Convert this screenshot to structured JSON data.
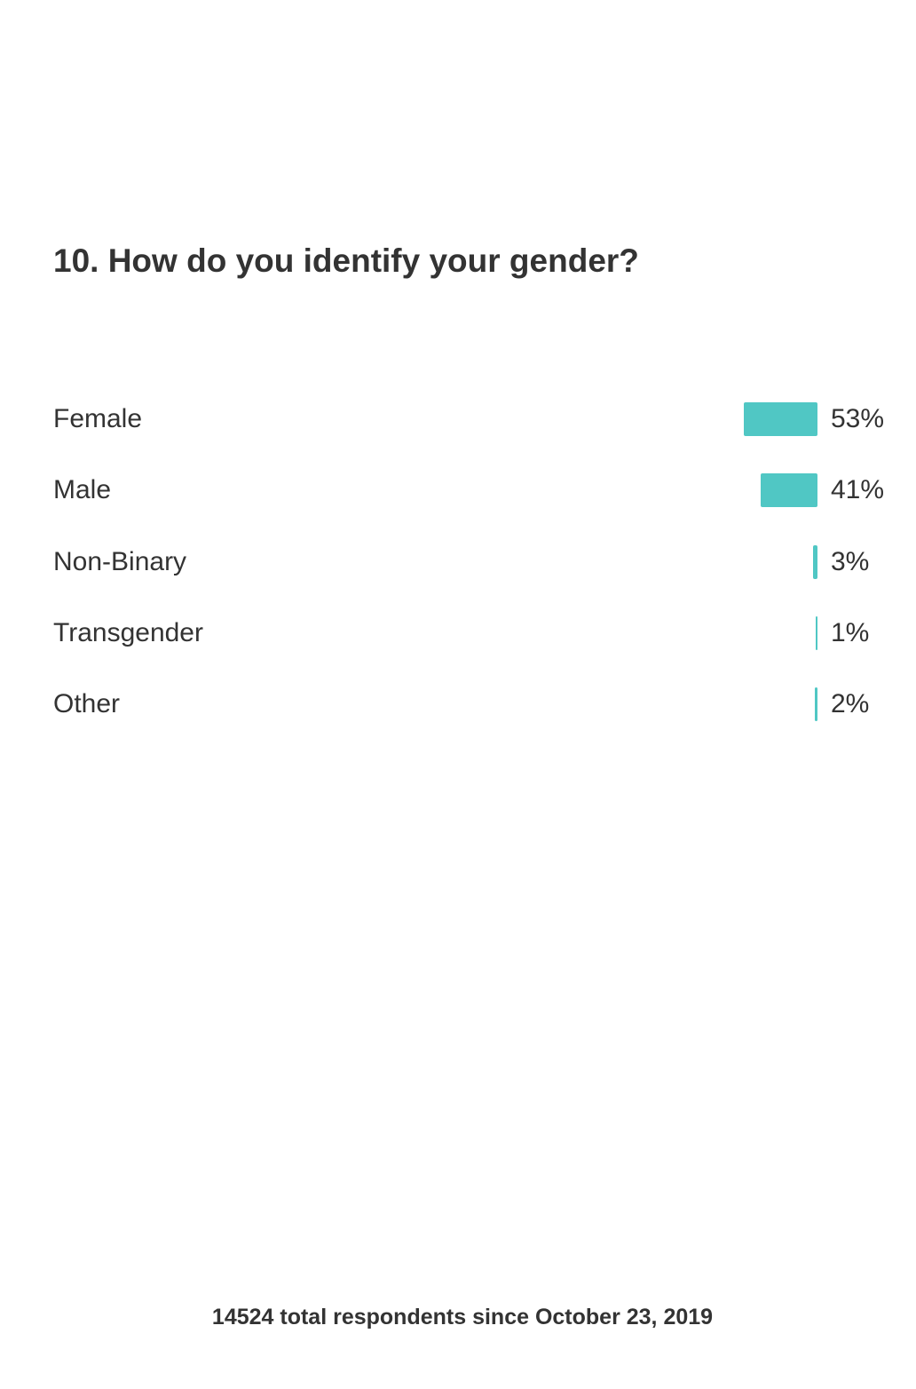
{
  "chart_data": {
    "type": "bar",
    "orientation": "horizontal",
    "title": "10. How do you identify your gender?",
    "categories": [
      "Female",
      "Male",
      "Non-Binary",
      "Transgender",
      "Other"
    ],
    "values": [
      53,
      41,
      3,
      1,
      2
    ],
    "value_labels": [
      "53%",
      "41%",
      "3%",
      "1%",
      "2%"
    ],
    "unit": "%",
    "grid": false,
    "bar_color": "#50c7c4",
    "footnote": "14524 total respondents since October 23, 2019"
  }
}
